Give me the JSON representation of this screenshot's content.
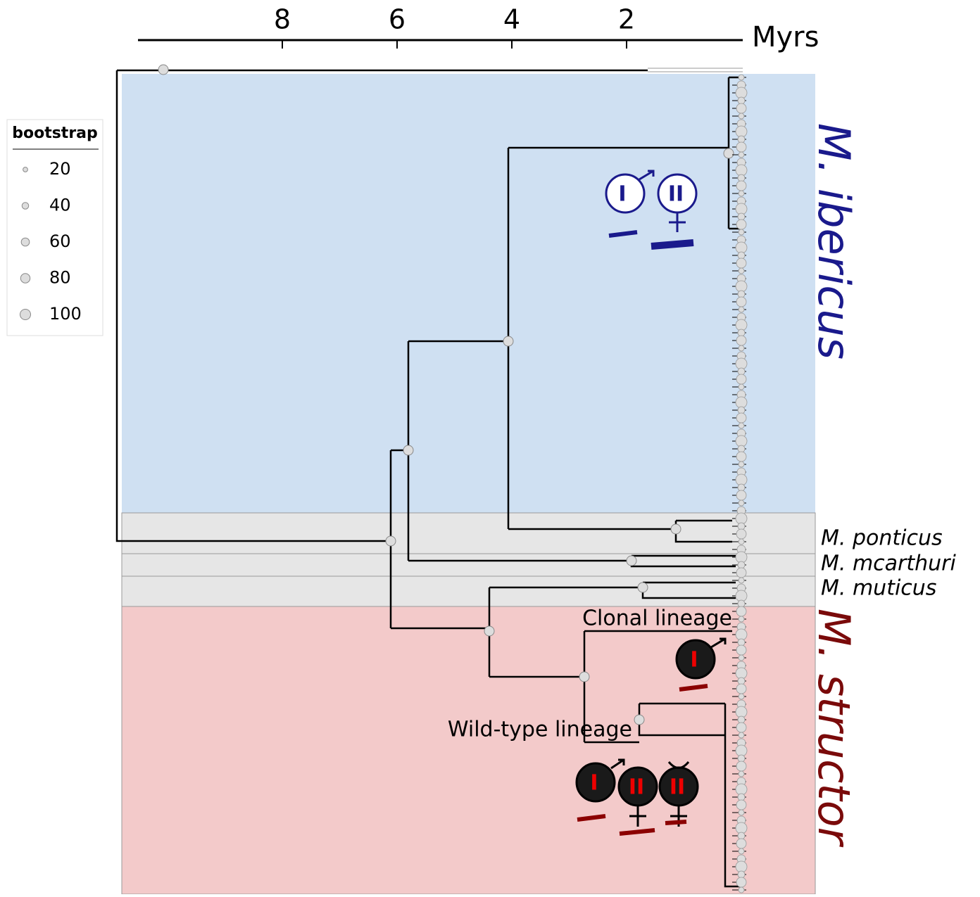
{
  "axis": {
    "ticks": [
      8,
      6,
      4,
      2
    ],
    "unit": "Myrs"
  },
  "legend": {
    "title": "bootstrap",
    "values": [
      20,
      40,
      60,
      80,
      100
    ]
  },
  "clades": {
    "ibericus": "M. ibericus",
    "ponticus": "M. ponticus",
    "mcarthuri": "M. mcarthuri",
    "muticus": "M. muticus",
    "structor": "M. structor"
  },
  "lineages": {
    "clonal": "Clonal lineage",
    "wild": "Wild-type lineage"
  },
  "icons": {
    "one": "I",
    "two": "II"
  }
}
